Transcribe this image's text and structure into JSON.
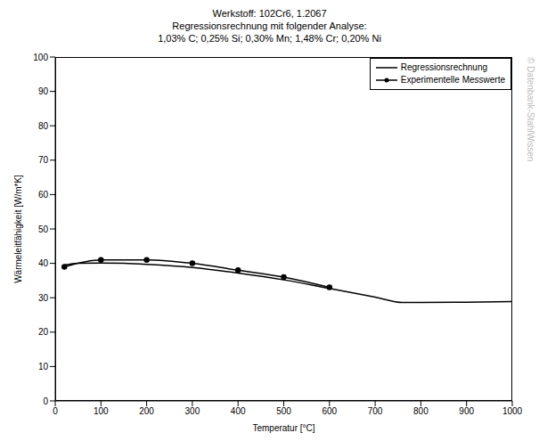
{
  "chart_data": {
    "type": "line",
    "title": "Werkstoff: 102Cr6, 1.2067",
    "subtitle": [
      "Regressionsrechnung mit folgender Analyse:",
      "1,03% C; 0,25% Si; 0,30% Mn; 1,48% Cr; 0,20% Ni"
    ],
    "annotations": [
      "© Datenbank-StahlWissen"
    ],
    "x_label": "Temperatur [°C]",
    "y_label": "Wärmeleitfähigkeit [W/m*K]",
    "xlim": [
      0,
      1000
    ],
    "xticks": [
      0,
      100,
      200,
      300,
      400,
      500,
      600,
      700,
      800,
      900,
      1000
    ],
    "ylim": [
      0,
      100
    ],
    "yticks": [
      0,
      10,
      20,
      30,
      40,
      50,
      60,
      70,
      80,
      90,
      100
    ],
    "grid": false,
    "legend": "upper right",
    "series": [
      {
        "name": "Regressionsrechnung",
        "color": "#000000",
        "marker": "none",
        "line_style": "solid",
        "x": [
          20,
          50,
          100,
          150,
          200,
          300,
          400,
          500,
          600,
          700,
          760,
          800,
          900,
          1000
        ],
        "values": [
          39.5,
          40,
          40.1,
          40,
          39.7,
          38.8,
          37.2,
          35.2,
          32.7,
          30.2,
          28.6,
          28.6,
          28.7,
          28.9
        ]
      },
      {
        "name": "Experimentelle Messwerte",
        "color": "#000000",
        "marker": "circle",
        "line_style": "solid",
        "x": [
          20,
          100,
          200,
          300,
          400,
          500,
          600
        ],
        "values": [
          39,
          41,
          41,
          40,
          38,
          36,
          33
        ]
      }
    ]
  }
}
